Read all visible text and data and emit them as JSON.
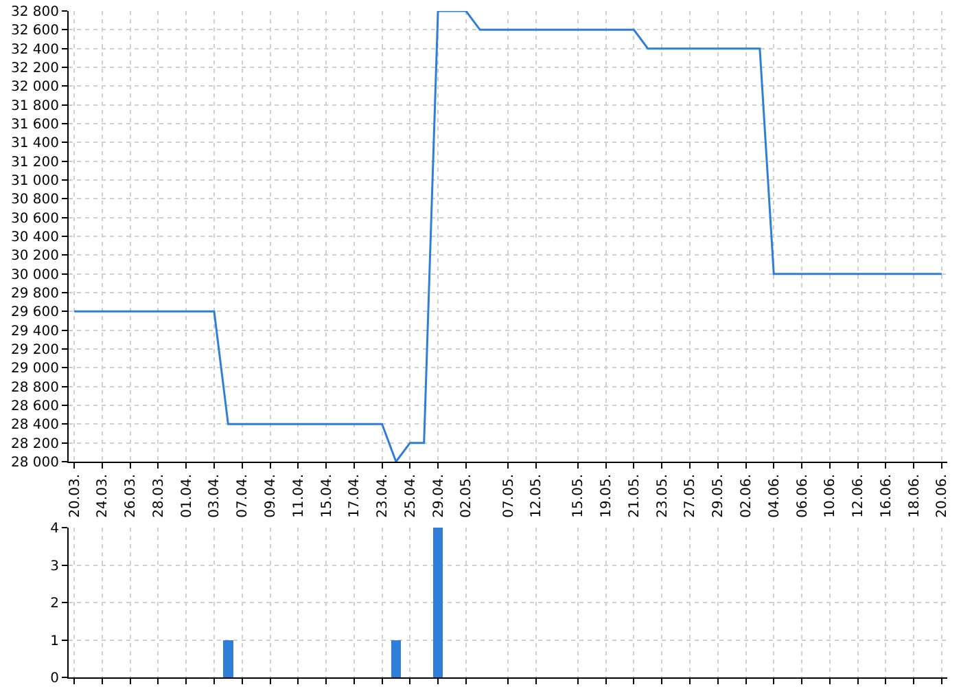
{
  "chart_data": [
    {
      "type": "line",
      "categories": [
        "20.03.",
        null,
        "24.03.",
        null,
        "26.03.",
        null,
        "28.03.",
        null,
        "01.04.",
        null,
        "03.04.",
        null,
        "07.04.",
        null,
        "09.04.",
        null,
        "11.04.",
        null,
        "15.04.",
        null,
        "17.04.",
        null,
        "23.04.",
        null,
        "25.04.",
        null,
        "29.04.",
        null,
        "02.05.",
        null,
        null,
        "07.05.",
        null,
        "12.05.",
        null,
        null,
        "15.05.",
        null,
        "19.05.",
        null,
        "21.05.",
        null,
        "23.05.",
        null,
        "27.05.",
        null,
        "29.05.",
        null,
        "02.06.",
        null,
        "04.06.",
        null,
        "06.06.",
        null,
        "10.06.",
        null,
        "12.06.",
        null,
        "16.06.",
        null,
        "18.06.",
        null,
        "20.06."
      ],
      "series": [
        {
          "color": "#2f7ed8",
          "values": [
            29600,
            29600,
            29600,
            29600,
            29600,
            29600,
            29600,
            29600,
            29600,
            29600,
            29600,
            28400,
            28400,
            28400,
            28400,
            28400,
            28400,
            28400,
            28400,
            28400,
            28400,
            28400,
            28400,
            28000,
            28200,
            28200,
            32800,
            32800,
            32800,
            32600,
            32600,
            32600,
            32600,
            32600,
            32600,
            32600,
            32600,
            32600,
            32600,
            32600,
            32600,
            32400,
            32400,
            32400,
            32400,
            32400,
            32400,
            32400,
            32400,
            32400,
            30000,
            30000,
            30000,
            30000,
            30000,
            30000,
            30000,
            30000,
            30000,
            30000,
            30000,
            30000,
            30000
          ]
        }
      ],
      "ylim": [
        28000,
        32800
      ],
      "yticks": [
        {
          "value": 28000,
          "label": "28 000"
        },
        {
          "value": 28200,
          "label": "28 200"
        },
        {
          "value": 28400,
          "label": "28 400"
        },
        {
          "value": 28600,
          "label": "28 600"
        },
        {
          "value": 28800,
          "label": "28 800"
        },
        {
          "value": 29000,
          "label": "29 000"
        },
        {
          "value": 29200,
          "label": "29 200"
        },
        {
          "value": 29400,
          "label": "29 400"
        },
        {
          "value": 29600,
          "label": "29 600"
        },
        {
          "value": 29800,
          "label": "29 800"
        },
        {
          "value": 30000,
          "label": "30 000"
        },
        {
          "value": 30200,
          "label": "30 200"
        },
        {
          "value": 30400,
          "label": "30 400"
        },
        {
          "value": 30600,
          "label": "30 600"
        },
        {
          "value": 30800,
          "label": "30 800"
        },
        {
          "value": 31000,
          "label": "31 000"
        },
        {
          "value": 31200,
          "label": "31 200"
        },
        {
          "value": 31400,
          "label": "31 400"
        },
        {
          "value": 31600,
          "label": "31 600"
        },
        {
          "value": 31800,
          "label": "31 800"
        },
        {
          "value": 32000,
          "label": "32 000"
        },
        {
          "value": 32200,
          "label": "32 200"
        },
        {
          "value": 32400,
          "label": "32 400"
        },
        {
          "value": 32600,
          "label": "32 600"
        },
        {
          "value": 32800,
          "label": "32 800"
        }
      ],
      "grid": true,
      "marker": "none",
      "line_style": "solid"
    },
    {
      "type": "bar",
      "categories": [
        "20.03.",
        null,
        "24.03.",
        null,
        "26.03.",
        null,
        "28.03.",
        null,
        "01.04.",
        null,
        "03.04.",
        null,
        "07.04.",
        null,
        "09.04.",
        null,
        "11.04.",
        null,
        "15.04.",
        null,
        "17.04.",
        null,
        "23.04.",
        null,
        "25.04.",
        null,
        "29.04.",
        null,
        "02.05.",
        null,
        null,
        "07.05.",
        null,
        "12.05.",
        null,
        null,
        "15.05.",
        null,
        "19.05.",
        null,
        "21.05.",
        null,
        "23.05.",
        null,
        "27.05.",
        null,
        "29.05.",
        null,
        "02.06.",
        null,
        "04.06.",
        null,
        "06.06.",
        null,
        "10.06.",
        null,
        "12.06.",
        null,
        "16.06.",
        null,
        "18.06.",
        null,
        "20.06."
      ],
      "series": [
        {
          "color": "#2f7ed8",
          "values": [
            0,
            0,
            0,
            0,
            0,
            0,
            0,
            0,
            0,
            0,
            0,
            1,
            0,
            0,
            0,
            0,
            0,
            0,
            0,
            0,
            0,
            0,
            0,
            1,
            0,
            0,
            4,
            0,
            0,
            0,
            0,
            0,
            0,
            0,
            0,
            0,
            0,
            0,
            0,
            0,
            0,
            0,
            0,
            0,
            0,
            0,
            0,
            0,
            0,
            0,
            0,
            0,
            0,
            0,
            0,
            0,
            0,
            0,
            0,
            0,
            0,
            0,
            0
          ]
        }
      ],
      "ylim": [
        0,
        4
      ],
      "yticks": [
        0,
        1,
        2,
        3,
        4
      ],
      "grid": true,
      "tick_labels": "y"
    }
  ]
}
